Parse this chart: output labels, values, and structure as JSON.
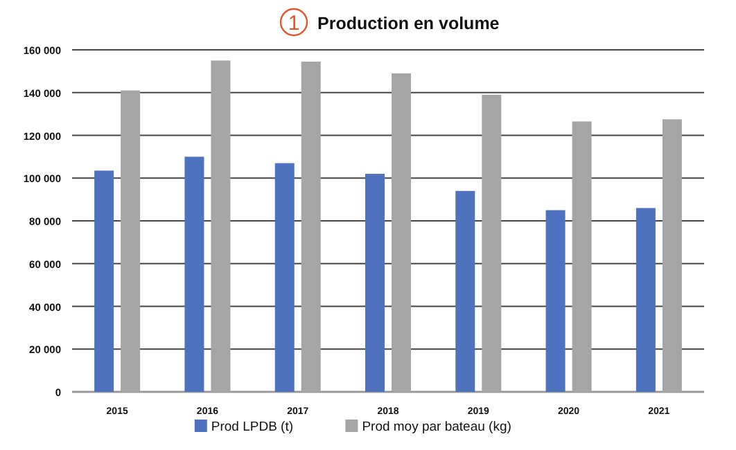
{
  "chart_data": {
    "type": "bar",
    "title": "Production en volume",
    "annotations": [
      "1"
    ],
    "categories": [
      "2015",
      "2016",
      "2017",
      "2018",
      "2019",
      "2020",
      "2021"
    ],
    "series": [
      {
        "name": "Prod LPDB (t)",
        "color": "#4f72be",
        "values": [
          103500,
          110000,
          107000,
          102000,
          94000,
          85000,
          86000
        ]
      },
      {
        "name": "Prod moy par bateau (kg)",
        "color": "#a5a5a5",
        "values": [
          141000,
          155000,
          154500,
          149000,
          139000,
          126500,
          127500
        ]
      }
    ],
    "ylim": [
      0,
      160000
    ],
    "yticks": [
      {
        "value": 0,
        "label": "0"
      },
      {
        "value": 20000,
        "label": "20 000"
      },
      {
        "value": 40000,
        "label": "40 000"
      },
      {
        "value": 60000,
        "label": "60 000"
      },
      {
        "value": 80000,
        "label": "80 000"
      },
      {
        "value": 100000,
        "label": "100 000"
      },
      {
        "value": 120000,
        "label": "120 000"
      },
      {
        "value": 140000,
        "label": "140 000"
      },
      {
        "value": 160000,
        "label": "160 000"
      }
    ],
    "grid": "y",
    "legend": "bottom"
  }
}
